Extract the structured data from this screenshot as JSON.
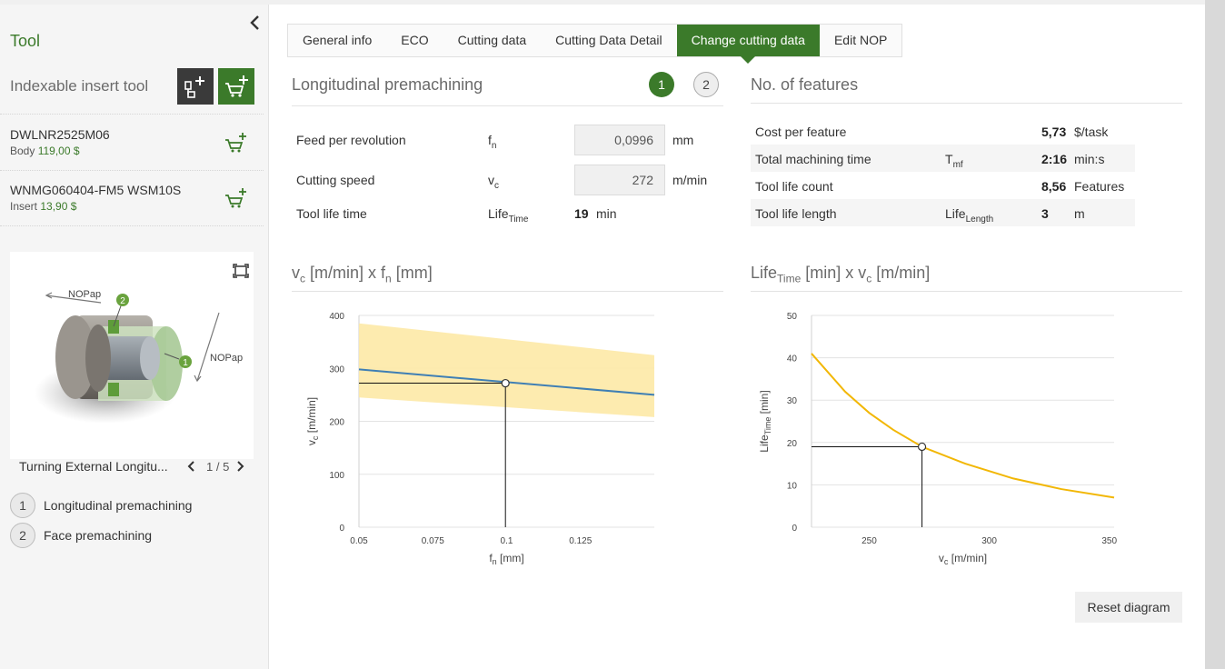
{
  "sidebar": {
    "title": "Tool",
    "subtitle": "Indexable insert tool",
    "items": [
      {
        "name": "DWLNR2525M06",
        "type": "Body",
        "price": "119,00 $"
      },
      {
        "name": "WNMG060404-FM5 WSM10S",
        "type": "Insert",
        "price": "13,90 $"
      }
    ],
    "image_labels": {
      "nop_top": "NOPap",
      "nop_right": "NOPap",
      "marker_1": "1",
      "marker_2": "2"
    },
    "nav": {
      "caption": "Turning External Longitu...",
      "count": "1 / 5"
    },
    "operations": [
      {
        "num": "1",
        "label": "Longitudinal premachining"
      },
      {
        "num": "2",
        "label": "Face premachining"
      }
    ]
  },
  "tabs": [
    "General info",
    "ECO",
    "Cutting data",
    "Cutting Data Detail",
    "Change cutting data",
    "Edit NOP"
  ],
  "active_tab": "Change cutting data",
  "left_panel": {
    "title": "Longitudinal premachining",
    "steps": [
      "1",
      "2"
    ],
    "params": [
      {
        "label": "Feed per revolution",
        "sym": "f",
        "sub": "n",
        "value": "0,0996",
        "unit": "mm"
      },
      {
        "label": "Cutting speed",
        "sym": "v",
        "sub": "c",
        "value": "272",
        "unit": "m/min"
      },
      {
        "label": "Tool life time",
        "sym": "Life",
        "sub": "Time",
        "value": "19",
        "unit": "min"
      }
    ]
  },
  "right_panel": {
    "title": "No. of features",
    "rows": [
      {
        "label": "Cost per feature",
        "sym": "",
        "sub": "",
        "value": "5,73",
        "unit": "$/task"
      },
      {
        "label": "Total machining time",
        "sym": "T",
        "sub": "mf",
        "value": "2:16",
        "unit": "min:s"
      },
      {
        "label": "Tool life count",
        "sym": "",
        "sub": "",
        "value": "8,56",
        "unit": "Features"
      },
      {
        "label": "Tool life length",
        "sym": "Life",
        "sub": "Length",
        "value": "3",
        "unit": "m"
      }
    ]
  },
  "chart_titles": {
    "left": {
      "p1": "v",
      "s1": "c",
      "p2": " [m/min] x f",
      "s2": "n",
      "p3": " [mm]"
    },
    "right": {
      "p1": "Life",
      "s1": "Time",
      "p2": " [min] x v",
      "s2": "c",
      "p3": " [m/min]"
    }
  },
  "reset_label": "Reset diagram",
  "colors": {
    "accent": "#3b7a2a",
    "series_blue": "#3f7fb4",
    "band_yellow": "#fde9a6",
    "curve_yellow": "#f2b705"
  },
  "chart_data": [
    {
      "type": "line",
      "xlabel": {
        "main": "f",
        "sub": "n",
        "rest": " [mm]"
      },
      "ylabel": {
        "main": "v",
        "sub": "c",
        "rest": " [m/min]"
      },
      "xlim": [
        0.05,
        0.15
      ],
      "ylim": [
        0,
        400
      ],
      "xticks": [
        {
          "v": 0.05,
          "label": "0.05"
        },
        {
          "v": 0.075,
          "label": "0.075"
        },
        {
          "v": 0.1,
          "label": "0.1"
        },
        {
          "v": 0.125,
          "label": "0.125"
        }
      ],
      "yticks": [
        {
          "v": 0,
          "label": "0"
        },
        {
          "v": 100,
          "label": "100"
        },
        {
          "v": 200,
          "label": "200"
        },
        {
          "v": 300,
          "label": "300"
        },
        {
          "v": 400,
          "label": "400"
        }
      ],
      "grid": true,
      "band": {
        "x": [
          0.05,
          0.15
        ],
        "upper": [
          385,
          325
        ],
        "lower": [
          245,
          208
        ]
      },
      "line": {
        "x": [
          0.05,
          0.15
        ],
        "y": [
          298,
          250
        ]
      },
      "point": {
        "x": 0.0996,
        "y": 272
      }
    },
    {
      "type": "line",
      "xlabel": {
        "main": "v",
        "sub": "c",
        "rest": " [m/min]"
      },
      "ylabel": {
        "main": "Life",
        "sub": "Time",
        "rest": " [min]"
      },
      "xlim": [
        226,
        352
      ],
      "ylim": [
        0,
        50
      ],
      "xticks": [
        {
          "v": 250,
          "label": "250"
        },
        {
          "v": 300,
          "label": "300"
        },
        {
          "v": 350,
          "label": "350"
        }
      ],
      "yticks": [
        {
          "v": 0,
          "label": "0"
        },
        {
          "v": 10,
          "label": "10"
        },
        {
          "v": 20,
          "label": "20"
        },
        {
          "v": 30,
          "label": "30"
        },
        {
          "v": 40,
          "label": "40"
        },
        {
          "v": 50,
          "label": "50"
        }
      ],
      "grid": true,
      "curve": {
        "x": [
          226,
          240,
          250,
          260,
          272,
          290,
          310,
          330,
          352
        ],
        "y": [
          41,
          32,
          27,
          23,
          19,
          15,
          11.5,
          9,
          7
        ]
      },
      "point": {
        "x": 272,
        "y": 19
      }
    }
  ]
}
